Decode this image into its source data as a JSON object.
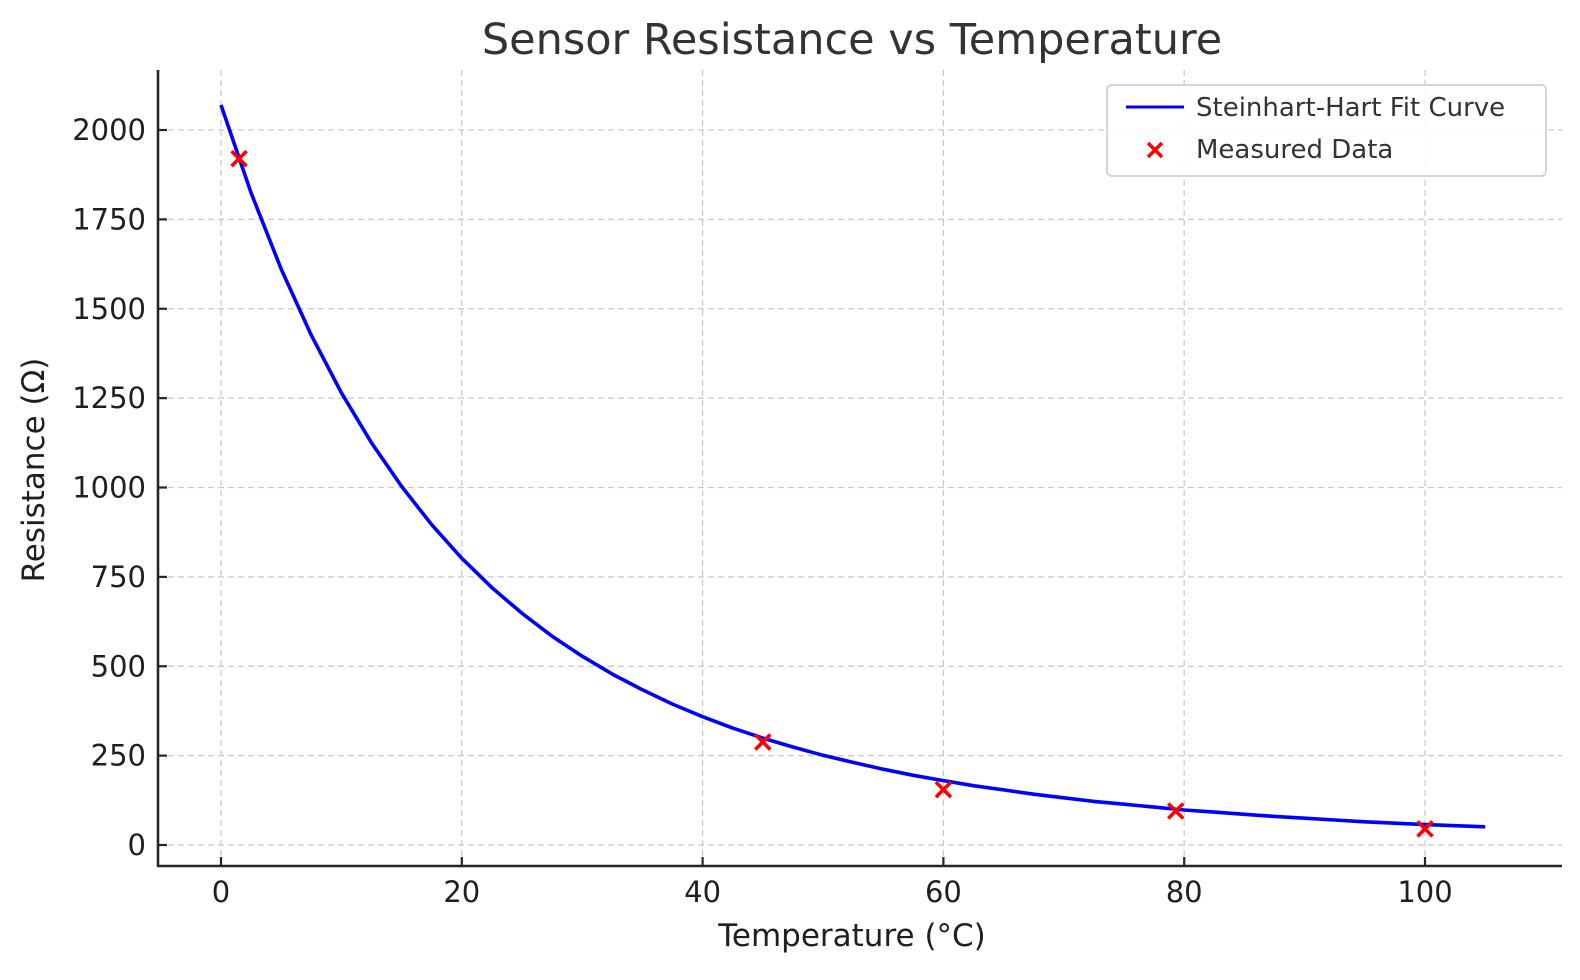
{
  "chart_data": {
    "type": "line",
    "title": "Sensor Resistance vs Temperature",
    "xlabel": "Temperature (°C)",
    "ylabel": "Resistance (Ω)",
    "xlim": [
      -5,
      110
    ],
    "ylim": [
      -60,
      2170
    ],
    "x_ticks": [
      0,
      20,
      40,
      60,
      80,
      100
    ],
    "x_tick_labels": [
      "0",
      "20",
      "40",
      "60",
      "80",
      "100"
    ],
    "y_ticks": [
      0,
      250,
      500,
      750,
      1000,
      1250,
      1500,
      1750,
      2000
    ],
    "y_tick_labels": [
      "0",
      "250",
      "500",
      "750",
      "1000",
      "1250",
      "1500",
      "1750",
      "2000"
    ],
    "grid": true,
    "legend_position": "top-right",
    "series": [
      {
        "name": "Steinhart-Hart Fit Curve",
        "kind": "line",
        "color": "#0000ff",
        "x": [
          0,
          2.5,
          5,
          7.5,
          10,
          12.5,
          15,
          17.5,
          20,
          22.5,
          25,
          27.5,
          30,
          32.5,
          35,
          37.5,
          40,
          42.5,
          45,
          47.5,
          50,
          52.5,
          55,
          57.5,
          60,
          62.5,
          65,
          67.5,
          70,
          72.5,
          75,
          77.5,
          80,
          82.5,
          85,
          87.5,
          90,
          92.5,
          95,
          97.5,
          100,
          102.5,
          105
        ],
        "y": [
          2070,
          1824,
          1611,
          1426,
          1265,
          1125,
          1003,
          896,
          802,
          720,
          648,
          584,
          528,
          478,
          434,
          394,
          359,
          327,
          299,
          274,
          251,
          231,
          212,
          195,
          180,
          166,
          154,
          142,
          132,
          122,
          114,
          106,
          98,
          92,
          86,
          80,
          75,
          70,
          65,
          61,
          57,
          54,
          51
        ]
      },
      {
        "name": "Measured Data",
        "kind": "scatter",
        "marker": "x",
        "color": "#ff0000",
        "x": [
          1.5,
          45,
          60,
          79.3,
          100
        ],
        "y": [
          1920,
          288,
          155,
          95,
          45
        ]
      }
    ]
  }
}
